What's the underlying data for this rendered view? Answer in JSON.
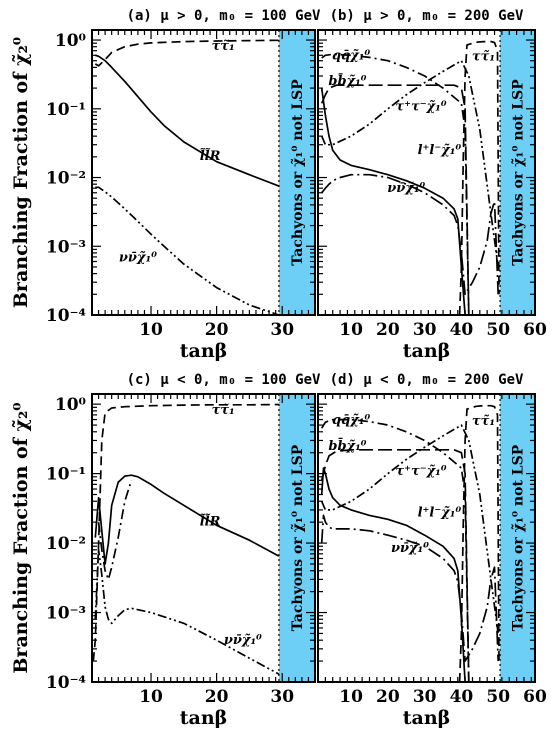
{
  "figure": {
    "ylabel": "Branching Fraction of χ̃₂⁰",
    "xlabel": "tanβ",
    "excluded_band_label": "Tachyons or χ̃₁⁰ not LSP",
    "band_color": "#6dcff6"
  },
  "chart_data": [
    {
      "id": "a",
      "title": "(a) μ > 0, m₀ = 100 GeV",
      "type": "line",
      "xlabel": "tanβ",
      "ylabel": "Branching Fraction of χ̃₂⁰",
      "yscale": "log",
      "xlim": [
        1,
        35
      ],
      "ylim": [
        0.0001,
        1.4
      ],
      "xticks": [
        10,
        20,
        30
      ],
      "yticks": [
        "10⁰",
        "10⁻¹",
        "10⁻²",
        "10⁻³",
        "10⁻⁴"
      ],
      "excluded_from": 29.5,
      "series": [
        {
          "name": "ττ̃₁",
          "style": "dashed",
          "label_at": [
            21,
            0.72
          ],
          "x": [
            1.5,
            2,
            3,
            4,
            6,
            8,
            10,
            15,
            20,
            25,
            29.5
          ],
          "y": [
            0.45,
            0.42,
            0.52,
            0.66,
            0.8,
            0.87,
            0.91,
            0.95,
            0.97,
            0.98,
            0.99
          ]
        },
        {
          "name": "l̃l̃R",
          "style": "solid",
          "label_at": [
            19,
            0.018
          ],
          "x": [
            1.5,
            2,
            3,
            4,
            6,
            8,
            10,
            12,
            15,
            20,
            25,
            29.5
          ],
          "y": [
            0.6,
            0.58,
            0.5,
            0.4,
            0.25,
            0.15,
            0.09,
            0.057,
            0.033,
            0.017,
            0.011,
            0.0075
          ]
        },
        {
          "name": "νν̄χ̃₁⁰",
          "style": "dashdotdot",
          "label_at": [
            8,
            0.0006
          ],
          "x": [
            1.5,
            2,
            3,
            4,
            6,
            8,
            10,
            12,
            15,
            20,
            25,
            29.5
          ],
          "y": [
            0.0072,
            0.0072,
            0.0062,
            0.0052,
            0.0035,
            0.0023,
            0.0015,
            0.001,
            0.00055,
            0.00025,
            0.00014,
            0.0001
          ]
        }
      ]
    },
    {
      "id": "b",
      "title": "(b) μ > 0, m₀ = 200 GeV",
      "type": "line",
      "xlabel": "tanβ",
      "ylabel": "",
      "yscale": "log",
      "xlim": [
        1,
        60
      ],
      "ylim": [
        0.0001,
        1.4
      ],
      "xticks": [
        10,
        20,
        30,
        40,
        50,
        60
      ],
      "yticks": [],
      "excluded_from": 50.5,
      "series": [
        {
          "name": "qq̄χ̃₁⁰",
          "style": "dashdot",
          "label_at": [
            10,
            0.52
          ],
          "x": [
            2,
            3,
            5,
            10,
            15,
            20,
            25,
            30,
            35,
            40,
            41,
            42
          ],
          "y": [
            0.55,
            0.6,
            0.62,
            0.6,
            0.56,
            0.5,
            0.4,
            0.3,
            0.2,
            0.12,
            0.05,
            0.0001
          ]
        },
        {
          "name": "bb̄χ̃₁⁰",
          "style": "longdash",
          "label_at": [
            9,
            0.22
          ],
          "x": [
            2,
            3,
            4,
            6,
            10,
            20,
            30,
            38,
            40,
            41,
            42
          ],
          "y": [
            0.12,
            0.16,
            0.2,
            0.22,
            0.22,
            0.22,
            0.22,
            0.22,
            0.2,
            0.1,
            0.0001
          ]
        },
        {
          "name": "ττ̃₁",
          "style": "dashed",
          "label_at": [
            46,
            0.5
          ],
          "x": [
            39.5,
            40,
            40.5,
            41,
            41.5,
            44,
            46,
            48,
            49,
            49.8,
            50.2
          ],
          "y": [
            0.0001,
            0.0005,
            0.02,
            0.3,
            0.85,
            0.93,
            0.95,
            0.95,
            0.92,
            0.7,
            0.0002
          ]
        },
        {
          "name": "τ⁺τ⁻χ̃₁⁰",
          "style": "dashdotdot",
          "label_at": [
            29,
            0.095
          ],
          "x": [
            2,
            3,
            5,
            10,
            15,
            20,
            25,
            30,
            35,
            40,
            42,
            45,
            48,
            50
          ],
          "y": [
            0.04,
            0.03,
            0.03,
            0.04,
            0.06,
            0.1,
            0.16,
            0.24,
            0.35,
            0.5,
            0.3,
            0.05,
            0.003,
            0.0005
          ]
        },
        {
          "name": "l⁺l⁻χ̃₁⁰",
          "style": "solid",
          "label_at": [
            34,
            0.022
          ],
          "x": [
            2,
            3,
            4,
            5,
            7,
            10,
            15,
            20,
            25,
            30,
            35,
            38,
            39,
            40,
            41
          ],
          "y": [
            0.2,
            0.08,
            0.04,
            0.025,
            0.018,
            0.015,
            0.013,
            0.011,
            0.009,
            0.007,
            0.005,
            0.0035,
            0.0025,
            0.0005,
            0.0001
          ]
        },
        {
          "name": "νν̄χ̃₁⁰",
          "style": "longdashdot",
          "label_at": [
            25,
            0.0062
          ],
          "x": [
            2,
            3,
            4,
            5,
            7,
            10,
            15,
            20,
            25,
            30,
            35,
            38,
            39,
            40,
            41,
            43,
            45,
            47,
            48,
            49,
            50
          ],
          "y": [
            0.006,
            0.007,
            0.008,
            0.009,
            0.01,
            0.011,
            0.011,
            0.01,
            0.008,
            0.006,
            0.004,
            0.0028,
            0.002,
            0.0008,
            0.0002,
            0.0003,
            0.0005,
            0.0012,
            0.003,
            0.0045,
            0.0002
          ]
        }
      ]
    },
    {
      "id": "c",
      "title": "(c) μ < 0, m₀ = 100 GeV",
      "type": "line",
      "xlabel": "tanβ",
      "ylabel": "Branching Fraction of χ̃₂⁰",
      "yscale": "log",
      "xlim": [
        1,
        35
      ],
      "ylim": [
        0.0001,
        1.4
      ],
      "xticks": [
        10,
        20,
        30
      ],
      "yticks": [
        "10⁰",
        "10⁻¹",
        "10⁻²",
        "10⁻³",
        "10⁻⁴"
      ],
      "excluded_from": 29.5,
      "series": [
        {
          "name": "ττ̃₁",
          "style": "dashed",
          "label_at": [
            21,
            0.72
          ],
          "x": [
            1.2,
            1.5,
            2,
            2.5,
            3,
            4,
            6,
            10,
            15,
            20,
            25,
            29.5
          ],
          "y": [
            0.0002,
            0.0004,
            0.01,
            0.3,
            0.75,
            0.88,
            0.92,
            0.95,
            0.97,
            0.98,
            0.98,
            0.99
          ]
        },
        {
          "name": "l̃l̃R",
          "style": "solid",
          "label_at": [
            19,
            0.018
          ],
          "x": [
            1.5,
            2,
            2.5,
            3,
            3.5,
            4,
            5,
            6,
            7,
            8,
            10,
            12,
            15,
            20,
            25,
            29.5
          ],
          "y": [
            0.012,
            0.045,
            0.015,
            0.005,
            0.01,
            0.035,
            0.075,
            0.092,
            0.095,
            0.09,
            0.07,
            0.052,
            0.035,
            0.018,
            0.011,
            0.0065
          ]
        },
        {
          "name": "νν̄χ̃₁⁰",
          "style": "dashdotdot",
          "label_at": [
            24,
            0.00035
          ],
          "x": [
            1.5,
            2,
            2.5,
            3,
            3.5,
            4,
            5,
            6,
            7,
            8,
            10,
            15,
            20,
            25,
            29.5
          ],
          "y": [
            0.0008,
            0.008,
            0.0035,
            0.0012,
            0.0008,
            0.0007,
            0.0009,
            0.0011,
            0.00115,
            0.0011,
            0.001,
            0.0007,
            0.0004,
            0.00022,
            0.00013
          ]
        },
        {
          "name": "dashdot-c",
          "style": "dashdot",
          "label_at": null,
          "x": [
            2,
            2.5,
            3,
            3.5,
            4,
            5,
            6,
            7
          ],
          "y": [
            0.02,
            0.008,
            0.004,
            0.003,
            0.0045,
            0.012,
            0.04,
            0.08
          ]
        }
      ]
    },
    {
      "id": "d",
      "title": "(d) μ < 0, m₀ = 200 GeV",
      "type": "line",
      "xlabel": "tanβ",
      "ylabel": "",
      "yscale": "log",
      "xlim": [
        1,
        60
      ],
      "ylim": [
        0.0001,
        1.4
      ],
      "xticks": [
        10,
        20,
        30,
        40,
        50,
        60
      ],
      "yticks": [],
      "excluded_from": 50.5,
      "series": [
        {
          "name": "qq̄χ̃₁⁰",
          "style": "dashdot",
          "label_at": [
            10,
            0.52
          ],
          "x": [
            2,
            3,
            5,
            10,
            15,
            20,
            25,
            30,
            35,
            40,
            41,
            42
          ],
          "y": [
            0.45,
            0.55,
            0.6,
            0.6,
            0.56,
            0.5,
            0.4,
            0.3,
            0.2,
            0.12,
            0.05,
            0.0001
          ]
        },
        {
          "name": "bb̄χ̃₁⁰",
          "style": "longdash",
          "label_at": [
            9,
            0.22
          ],
          "x": [
            2,
            3,
            4,
            6,
            10,
            20,
            30,
            38,
            40,
            41,
            42
          ],
          "y": [
            0.08,
            0.13,
            0.18,
            0.21,
            0.22,
            0.22,
            0.22,
            0.22,
            0.2,
            0.1,
            0.0001
          ]
        },
        {
          "name": "ττ̃₁",
          "style": "dashed",
          "label_at": [
            46,
            0.5
          ],
          "x": [
            39.5,
            40,
            40.5,
            41,
            41.5,
            44,
            46,
            48,
            49,
            49.8,
            50.2
          ],
          "y": [
            0.0001,
            0.0005,
            0.02,
            0.3,
            0.85,
            0.93,
            0.95,
            0.95,
            0.92,
            0.7,
            0.0002
          ]
        },
        {
          "name": "τ⁺τ⁻χ̃₁⁰",
          "style": "dashdotdot",
          "label_at": [
            29,
            0.095
          ],
          "x": [
            2,
            3,
            5,
            10,
            15,
            20,
            25,
            30,
            35,
            40,
            42,
            45,
            48,
            50
          ],
          "y": [
            0.04,
            0.03,
            0.03,
            0.04,
            0.06,
            0.1,
            0.16,
            0.24,
            0.35,
            0.5,
            0.3,
            0.05,
            0.003,
            0.0005
          ]
        },
        {
          "name": "l⁺l⁻χ̃₁⁰",
          "style": "solid",
          "label_at": [
            34,
            0.024
          ],
          "x": [
            2,
            2.5,
            3,
            4,
            5,
            7,
            10,
            15,
            20,
            25,
            30,
            35,
            38,
            39,
            40,
            41
          ],
          "y": [
            0.05,
            0.12,
            0.1,
            0.06,
            0.045,
            0.035,
            0.03,
            0.025,
            0.022,
            0.018,
            0.013,
            0.009,
            0.006,
            0.004,
            0.0008,
            0.0001
          ]
        },
        {
          "name": "νν̄χ̃₁⁰",
          "style": "longdashdot",
          "label_at": [
            26,
            0.0075
          ],
          "x": [
            2,
            2.5,
            3,
            4,
            5,
            7,
            10,
            15,
            20,
            25,
            30,
            35,
            38,
            39,
            40,
            41,
            43,
            45,
            47,
            48,
            49,
            50
          ],
          "y": [
            0.01,
            0.025,
            0.02,
            0.017,
            0.016,
            0.016,
            0.016,
            0.015,
            0.013,
            0.011,
            0.009,
            0.006,
            0.004,
            0.0028,
            0.001,
            0.0002,
            0.0003,
            0.0005,
            0.0012,
            0.003,
            0.0045,
            0.0002
          ]
        }
      ]
    }
  ]
}
